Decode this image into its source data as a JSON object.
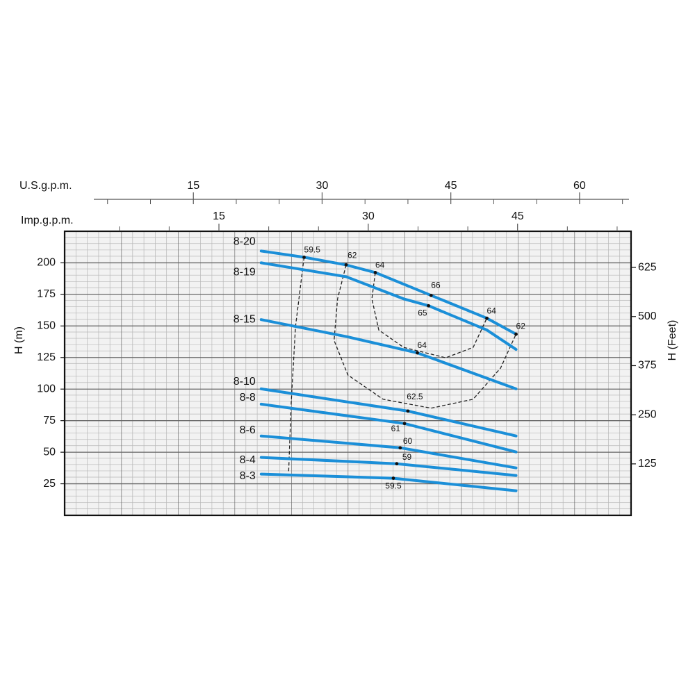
{
  "chart_data": {
    "type": "line",
    "x_label": "U.S.g.p.m.",
    "x2_label": "Imp.g.p.m.",
    "ylabel": "H (m)",
    "y2label": "H (Feet)",
    "xlim": [
      0,
      66
    ],
    "xticks": [
      15,
      30,
      45,
      60
    ],
    "x_minor_ticks": [
      5,
      10,
      20,
      25,
      35,
      40,
      50,
      55,
      65
    ],
    "x2lim": [
      -0.5,
      56.4
    ],
    "x2ticks": [
      15,
      30,
      45
    ],
    "x2_minor_ticks": [
      5,
      10,
      20,
      25,
      35,
      40,
      50,
      55
    ],
    "ylim": [
      0,
      225
    ],
    "yticks": [
      25,
      50,
      75,
      100,
      125,
      150,
      175,
      200
    ],
    "y2lim": [
      -6,
      717
    ],
    "y2ticks": [
      125,
      250,
      375,
      500,
      625
    ],
    "grid": true,
    "series": [
      {
        "name": "8-20",
        "color": "#1b8fd8",
        "x": [
          22.9,
          27.9,
          32.8,
          36.2,
          42.7,
          49.2,
          52.6
        ],
        "values": [
          209.4,
          204.4,
          198.4,
          192.3,
          174.2,
          156.1,
          143.5
        ]
      },
      {
        "name": "8-19",
        "color": "#1b8fd8",
        "x": [
          22.9,
          32.8,
          39.5,
          42.4,
          49.2,
          52.6
        ],
        "values": [
          200,
          189,
          171.5,
          166,
          146.8,
          131.4
        ]
      },
      {
        "name": "8-15",
        "color": "#1b8fd8",
        "x": [
          22.9,
          33,
          41.1,
          52.6
        ],
        "values": [
          155,
          141.3,
          128.7,
          100.2
        ]
      },
      {
        "name": "8-10",
        "color": "#1b8fd8",
        "x": [
          22.9,
          40,
          52.6
        ],
        "values": [
          100.2,
          82.6,
          62.9
        ]
      },
      {
        "name": "8-8",
        "color": "#1b8fd8",
        "x": [
          22.9,
          39.6,
          52.6
        ],
        "values": [
          88.1,
          72.7,
          50.2
        ]
      },
      {
        "name": "8-6",
        "color": "#1b8fd8",
        "x": [
          22.9,
          39.1,
          52.6
        ],
        "values": [
          62.9,
          53.5,
          37.6
        ]
      },
      {
        "name": "8-4",
        "color": "#1b8fd8",
        "x": [
          22.9,
          38.7,
          52.6
        ],
        "values": [
          45.9,
          40.9,
          31.6
        ]
      },
      {
        "name": "8-3",
        "color": "#1b8fd8",
        "x": [
          22.9,
          38.3,
          52.6
        ],
        "values": [
          32.7,
          29.4,
          19.5
        ]
      }
    ],
    "efficiency_curves": [
      {
        "color": "#222222",
        "x": [
          27.9,
          26.9,
          26.4,
          26.1
        ],
        "values": [
          204.4,
          149.5,
          89.1,
          34.2
        ]
      },
      {
        "color": "#222222",
        "x": [
          32.8,
          31.8,
          31.4,
          33.0,
          37.1,
          42.7,
          47.6,
          50.8,
          52.6
        ],
        "values": [
          198.4,
          171.5,
          138.6,
          111.2,
          92.0,
          84.9,
          92.0,
          116.7,
          143.5
        ]
      },
      {
        "color": "#222222",
        "x": [
          36.2,
          35.8,
          36.6,
          39.5,
          44.4,
          47.6,
          49.2
        ],
        "values": [
          192.3,
          171.5,
          146.8,
          133.0,
          124.8,
          133.0,
          156.1
        ]
      }
    ],
    "efficiency_points": [
      {
        "label": "59.5",
        "x": 27.9,
        "y": 204.4
      },
      {
        "label": "62",
        "x": 32.8,
        "y": 198.4
      },
      {
        "label": "64",
        "x": 36.2,
        "y": 192.3
      },
      {
        "label": "66",
        "x": 42.7,
        "y": 174.2
      },
      {
        "label": "65",
        "x": 42.4,
        "y": 166.0
      },
      {
        "label": "64",
        "x": 49.2,
        "y": 156.1
      },
      {
        "label": "62",
        "x": 52.6,
        "y": 143.5
      },
      {
        "label": "64",
        "x": 41.1,
        "y": 128.7
      },
      {
        "label": "62.5",
        "x": 40.0,
        "y": 82.6
      },
      {
        "label": "61",
        "x": 39.6,
        "y": 72.7
      },
      {
        "label": "60",
        "x": 39.1,
        "y": 53.5
      },
      {
        "label": "59",
        "x": 38.7,
        "y": 40.9
      },
      {
        "label": "59.5",
        "x": 38.3,
        "y": 29.4
      }
    ]
  }
}
